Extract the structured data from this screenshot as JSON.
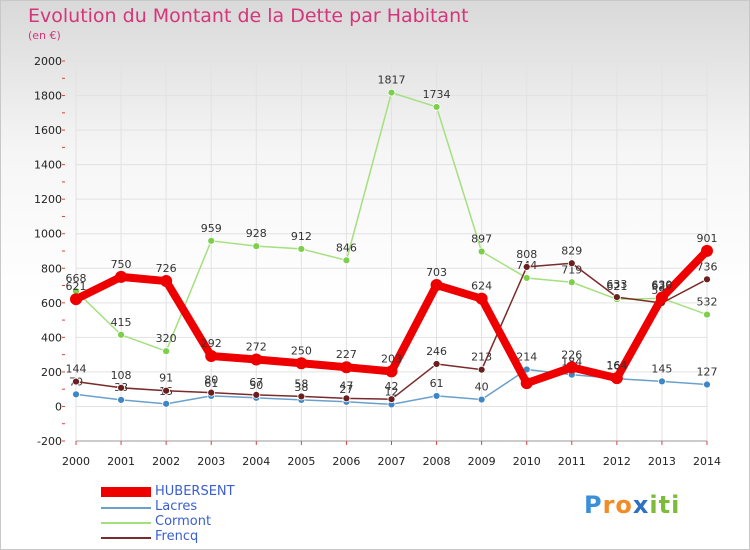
{
  "chart_data": {
    "type": "line",
    "title": "Evolution du Montant de la Dette par Habitant",
    "subtitle": "(en €)",
    "ylim": [
      -200,
      2000
    ],
    "yticks": [
      -200,
      0,
      200,
      400,
      600,
      800,
      1000,
      1200,
      1400,
      1600,
      1800,
      2000
    ],
    "categories": [
      "2000",
      "2001",
      "2002",
      "2003",
      "2004",
      "2005",
      "2006",
      "2007",
      "2008",
      "2009",
      "2010",
      "2011",
      "2012",
      "2013",
      "2014"
    ],
    "series": [
      {
        "name": "Lacres",
        "color": "#6aa0cc",
        "marker": "#3f86c4",
        "values": [
          70,
          38,
          15,
          61,
          50,
          38,
          27,
          12,
          61,
          40,
          214,
          184,
          161,
          145,
          127
        ],
        "labels": [
          "70",
          "38",
          "15",
          "61",
          "50",
          "38",
          "27",
          "12",
          "61",
          "40",
          "214",
          "184",
          "161",
          "145",
          "127"
        ]
      },
      {
        "name": "Cormont",
        "color": "#a5e07e",
        "marker": "#7ccf4a",
        "values": [
          668,
          415,
          320,
          959,
          928,
          912,
          846,
          1817,
          1734,
          897,
          744,
          719,
          621,
          626,
          532
        ],
        "labels": [
          "668",
          "415",
          "320",
          "959",
          "928",
          "912",
          "846",
          "1817",
          "1734",
          "897",
          "744",
          "719",
          "621",
          "626",
          "532"
        ]
      },
      {
        "name": "Frencq",
        "color": "#7a2b2b",
        "marker": "#6a1f1f",
        "values": [
          144,
          108,
          91,
          80,
          67,
          58,
          47,
          42,
          246,
          213,
          808,
          829,
          633,
          599,
          736
        ],
        "labels": [
          "144",
          "108",
          "91",
          "80",
          "67",
          "58",
          "47",
          "42",
          "246",
          "213",
          "808",
          "829",
          "633",
          "599",
          "736"
        ]
      },
      {
        "name": "HUBERSENT",
        "color": "#ee0000",
        "marker": "#ee0000",
        "values": [
          621,
          750,
          726,
          292,
          272,
          250,
          227,
          203,
          703,
          624,
          135,
          226,
          164,
          630,
          901
        ],
        "labels": [
          "621",
          "750",
          "726",
          "292",
          "272",
          "250",
          "227",
          "203",
          "703",
          "624",
          "",
          "226",
          "164",
          "630",
          "901"
        ]
      }
    ]
  },
  "legend": {
    "items": [
      {
        "name": "HUBERSENT",
        "color": "#ee0000",
        "text_color": "#3a5fcd"
      },
      {
        "name": "Lacres",
        "color": "#6aa0cc",
        "text_color": "#3a5fcd"
      },
      {
        "name": "Cormont",
        "color": "#a5e07e",
        "text_color": "#3a5fcd"
      },
      {
        "name": "Frencq",
        "color": "#7a2b2b",
        "text_color": "#3a5fcd"
      }
    ]
  },
  "logo": {
    "p": "P",
    "ro": "ro",
    "x": "x",
    "iti": "iti"
  }
}
